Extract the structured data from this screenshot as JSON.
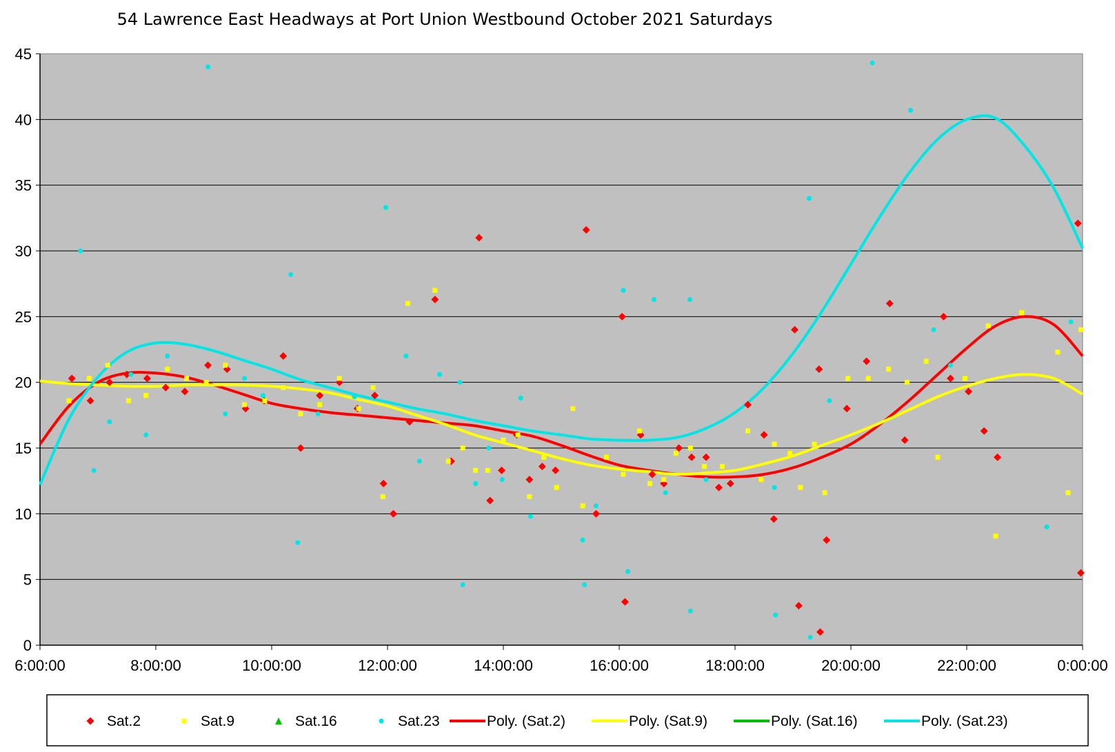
{
  "chart_data": {
    "type": "scatter",
    "title": "54 Lawrence East Headways at Port Union Westbound October 2021  Saturdays",
    "xlabel": "",
    "ylabel": "",
    "x_tick_labels": [
      "6:00:00",
      "8:00:00",
      "10:00:00",
      "12:00:00",
      "14:00:00",
      "16:00:00",
      "18:00:00",
      "20:00:00",
      "22:00:00",
      "0:00:00"
    ],
    "xlim": [
      6,
      24
    ],
    "ylim": [
      0,
      45
    ],
    "y_ticks": [
      0,
      5,
      10,
      15,
      20,
      25,
      30,
      35,
      40,
      45
    ],
    "grid": "horizontal",
    "background": "#C0C0C0",
    "legend_position": "bottom",
    "series": [
      {
        "name": "Sat.2",
        "marker": "diamond",
        "color": "#FF0000",
        "x": [
          6.55,
          6.87,
          7.2,
          7.5,
          7.85,
          8.17,
          8.5,
          8.9,
          9.23,
          9.55,
          9.87,
          10.2,
          10.5,
          10.83,
          11.17,
          11.48,
          11.78,
          11.93,
          12.1,
          12.38,
          12.82,
          13.1,
          13.58,
          13.77,
          13.97,
          14.23,
          14.45,
          14.67,
          14.9,
          15.43,
          15.6,
          16.05,
          16.1,
          16.37,
          16.57,
          16.77,
          17.03,
          17.25,
          17.5,
          17.72,
          17.92,
          18.22,
          18.5,
          18.67,
          19.03,
          19.1,
          19.47,
          19.45,
          19.58,
          19.93,
          20.27,
          20.67,
          20.93,
          21.6,
          21.72,
          22.03,
          22.3,
          22.53,
          23.97,
          23.92
        ],
        "y": [
          20.3,
          18.6,
          20,
          20.6,
          20.3,
          19.6,
          19.3,
          21.3,
          21,
          18,
          18.6,
          22,
          15,
          19,
          20,
          18,
          19,
          12.3,
          10,
          17,
          26.3,
          14,
          31,
          11,
          13.3,
          16,
          12.6,
          13.6,
          13.3,
          31.6,
          10,
          25,
          3.3,
          16,
          13,
          12.3,
          15,
          14.3,
          14.3,
          12,
          12.3,
          18.3,
          16,
          9.6,
          24,
          3,
          1,
          21,
          8,
          18,
          21.6,
          26,
          15.6,
          25,
          20.3,
          19.3,
          16.3,
          14.3,
          5.5,
          32.1
        ]
      },
      {
        "name": "Sat.9",
        "marker": "square",
        "color": "#FFFF00",
        "x": [
          6.5,
          6.85,
          7.17,
          7.53,
          7.83,
          8.2,
          8.53,
          8.87,
          9.2,
          9.53,
          9.88,
          10.2,
          10.5,
          10.83,
          11.17,
          11.5,
          11.75,
          11.92,
          12.35,
          12.82,
          13.05,
          13.3,
          13.52,
          13.73,
          14,
          14.25,
          14.45,
          14.7,
          14.92,
          15.2,
          15.37,
          15.78,
          16.07,
          16.35,
          16.53,
          16.77,
          16.98,
          17.23,
          17.47,
          17.78,
          18.22,
          18.45,
          18.68,
          18.95,
          19.13,
          19.37,
          19.55,
          19.95,
          20.3,
          20.65,
          20.97,
          21.3,
          21.5,
          21.97,
          22.37,
          22.5,
          22.95,
          23.57,
          23.75,
          23.97
        ],
        "y": [
          18.6,
          20.3,
          21.3,
          18.6,
          19,
          21,
          20.3,
          20,
          21.3,
          18.3,
          18.6,
          19.6,
          17.6,
          18.3,
          20.3,
          18,
          19.6,
          11.3,
          26,
          27,
          14,
          15,
          13.3,
          13.3,
          15.6,
          16,
          11.3,
          14.3,
          12,
          18,
          10.6,
          14.3,
          13,
          16.3,
          12.3,
          12.6,
          14.6,
          15,
          13.6,
          13.6,
          16.3,
          12.6,
          15.3,
          14.6,
          12,
          15.3,
          11.6,
          20.3,
          20.3,
          21,
          20,
          21.6,
          14.3,
          20.3,
          24.3,
          8.3,
          25.3,
          22.3,
          11.6,
          24
        ]
      },
      {
        "name": "Sat.16",
        "marker": "triangle",
        "color": "#00C000",
        "x": [],
        "y": []
      },
      {
        "name": "Sat.23",
        "marker": "circle",
        "color": "#00E5E5",
        "x": [
          6.7,
          6.93,
          7.2,
          7.57,
          7.83,
          8.2,
          8.9,
          9.2,
          9.53,
          9.85,
          10.33,
          10.45,
          10.8,
          11.43,
          11.97,
          12.32,
          12.55,
          12.9,
          13.25,
          13.3,
          13.52,
          13.75,
          13.98,
          14.3,
          14.47,
          15.37,
          15.4,
          15.6,
          16.07,
          16.15,
          16.6,
          16.8,
          17.22,
          17.23,
          17.5,
          18.68,
          18.7,
          19.28,
          19.3,
          19.63,
          20.37,
          21.03,
          21.43,
          21.72,
          23.38,
          23.8
        ],
        "y": [
          30,
          13.3,
          17,
          20.6,
          16,
          22,
          44,
          17.6,
          20.3,
          19,
          28.2,
          7.8,
          17.6,
          18.9,
          33.3,
          22,
          14,
          20.6,
          20,
          4.6,
          12.3,
          15,
          12.6,
          18.8,
          9.8,
          8,
          4.6,
          10.6,
          27,
          5.6,
          26.3,
          11.6,
          26.3,
          2.6,
          12.6,
          12,
          2.3,
          34,
          0.6,
          18.6,
          44.3,
          40.7,
          24,
          21.3,
          9,
          24.6
        ]
      },
      {
        "name": "Poly. (Sat.2)",
        "type": "line",
        "color": "#FF0000",
        "trendline_of": "Sat.2",
        "x": [
          6,
          6.5,
          7,
          7.5,
          8,
          8.5,
          9,
          9.5,
          10,
          10.5,
          11,
          11.5,
          12,
          12.5,
          13,
          13.5,
          14,
          14.5,
          15,
          15.5,
          16,
          16.5,
          17,
          17.5,
          18,
          18.5,
          19,
          19.5,
          20,
          20.5,
          21,
          21.5,
          22,
          22.5,
          23,
          23.5,
          24
        ],
        "y": [
          15.3,
          18.2,
          20,
          20.7,
          20.7,
          20.4,
          19.8,
          19.1,
          18.4,
          18,
          17.7,
          17.5,
          17.3,
          17.1,
          16.9,
          16.7,
          16.3,
          15.9,
          15.2,
          14.4,
          13.7,
          13.3,
          13,
          12.8,
          12.8,
          13,
          13.5,
          14.3,
          15.3,
          16.8,
          18.6,
          20.6,
          22.6,
          24.3,
          25,
          24.4,
          22
        ]
      },
      {
        "name": "Poly. (Sat.9)",
        "type": "line",
        "color": "#FFFF00",
        "trendline_of": "Sat.9",
        "x": [
          6,
          6.5,
          7,
          7.5,
          8,
          8.5,
          9,
          9.5,
          10,
          10.5,
          11,
          11.5,
          12,
          12.5,
          13,
          13.5,
          14,
          14.5,
          15,
          15.5,
          16,
          16.5,
          17,
          17.5,
          18,
          18.5,
          19,
          19.5,
          20,
          20.5,
          21,
          21.5,
          22,
          22.5,
          23,
          23.5,
          24
        ],
        "y": [
          20.1,
          19.9,
          19.8,
          19.7,
          19.7,
          19.8,
          19.8,
          19.8,
          19.7,
          19.5,
          19.2,
          18.7,
          18.2,
          17.5,
          16.8,
          16,
          15.4,
          14.8,
          14.2,
          13.7,
          13.4,
          13.2,
          13,
          13.1,
          13.3,
          13.8,
          14.4,
          15.2,
          16,
          16.9,
          17.9,
          18.9,
          19.7,
          20.3,
          20.6,
          20.3,
          19.1
        ]
      },
      {
        "name": "Poly. (Sat.16)",
        "type": "line",
        "color": "#00C000",
        "trendline_of": "Sat.16",
        "x": [],
        "y": []
      },
      {
        "name": "Poly. (Sat.23)",
        "type": "line",
        "color": "#00E5E5",
        "trendline_of": "Sat.23",
        "x": [
          6,
          6.5,
          7,
          7.5,
          8,
          8.5,
          9,
          9.5,
          10,
          10.5,
          11,
          11.5,
          12,
          12.5,
          13,
          13.5,
          14,
          14.5,
          15,
          15.5,
          16,
          16.5,
          17,
          17.5,
          18,
          18.5,
          19,
          19.5,
          20,
          20.5,
          21,
          21.5,
          22,
          22.5,
          23,
          23.5,
          24
        ],
        "y": [
          12.2,
          17.2,
          20.4,
          22.3,
          23,
          22.9,
          22.4,
          21.7,
          21,
          20.2,
          19.6,
          19,
          18.5,
          18,
          17.6,
          17.1,
          16.7,
          16.3,
          16,
          15.7,
          15.6,
          15.6,
          15.8,
          16.5,
          17.7,
          19.6,
          22.2,
          25.4,
          29,
          32.6,
          35.9,
          38.5,
          40,
          40.1,
          38,
          34.8,
          30.2
        ]
      }
    ]
  }
}
